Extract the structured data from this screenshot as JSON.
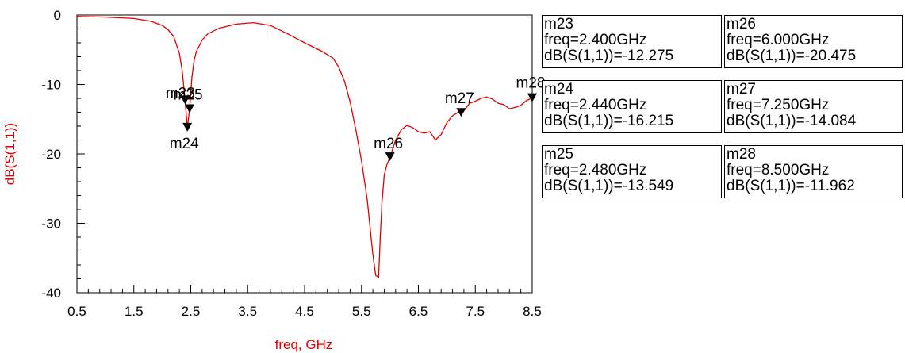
{
  "chart_data": {
    "type": "line",
    "xlabel": "freq, GHz",
    "ylabel": "dB(S(1,1))",
    "xlim": [
      0.5,
      8.5
    ],
    "ylim": [
      -40,
      0
    ],
    "x_ticks": [
      "0.5",
      "1.5",
      "2.5",
      "3.5",
      "4.5",
      "5.5",
      "6.5",
      "7.5",
      "8.5"
    ],
    "y_ticks": [
      "0",
      "-10",
      "-20",
      "-30",
      "-40"
    ],
    "grid": false,
    "series": [
      {
        "color": "#e00000",
        "x": [
          0.5,
          1.0,
          1.5,
          1.8,
          2.0,
          2.1,
          2.2,
          2.3,
          2.35,
          2.4,
          2.44,
          2.48,
          2.52,
          2.56,
          2.6,
          2.7,
          2.8,
          3.0,
          3.3,
          3.6,
          3.9,
          4.2,
          4.5,
          4.8,
          5.0,
          5.1,
          5.2,
          5.3,
          5.4,
          5.5,
          5.6,
          5.65,
          5.7,
          5.75,
          5.8,
          5.83,
          5.86,
          5.9,
          5.95,
          6.0,
          6.1,
          6.2,
          6.3,
          6.4,
          6.5,
          6.6,
          6.7,
          6.8,
          6.9,
          7.0,
          7.1,
          7.2,
          7.25,
          7.3,
          7.4,
          7.5,
          7.6,
          7.7,
          7.8,
          7.9,
          8.0,
          8.1,
          8.2,
          8.3,
          8.4,
          8.5
        ],
        "y": [
          -0.2,
          -0.3,
          -0.5,
          -0.9,
          -1.5,
          -2.1,
          -3.1,
          -5.5,
          -8.0,
          -12.3,
          -16.2,
          -13.5,
          -9.0,
          -6.5,
          -5.2,
          -3.6,
          -2.7,
          -1.9,
          -1.3,
          -1.1,
          -1.5,
          -2.7,
          -4.0,
          -5.2,
          -6.2,
          -7.5,
          -9.5,
          -12.5,
          -16.5,
          -21.0,
          -26.5,
          -30.5,
          -34.5,
          -37.5,
          -37.8,
          -32.0,
          -27.0,
          -23.0,
          -21.5,
          -20.5,
          -18.0,
          -16.5,
          -15.9,
          -16.2,
          -16.8,
          -17.0,
          -16.8,
          -18.0,
          -17.2,
          -15.5,
          -14.5,
          -14.0,
          -14.1,
          -13.8,
          -12.7,
          -12.4,
          -12.0,
          -11.8,
          -12.1,
          -12.7,
          -12.9,
          -13.5,
          -13.3,
          -13.0,
          -12.3,
          -11.96
        ]
      }
    ],
    "markers": [
      {
        "name": "m23",
        "freq": "freq=2.400GHz",
        "value": "dB(S(1,1))=-12.275",
        "x": 2.4,
        "y": -12.275
      },
      {
        "name": "m24",
        "freq": "freq=2.440GHz",
        "value": "dB(S(1,1))=-16.215",
        "x": 2.44,
        "y": -16.215
      },
      {
        "name": "m25",
        "freq": "freq=2.480GHz",
        "value": "dB(S(1,1))=-13.549",
        "x": 2.48,
        "y": -13.549
      },
      {
        "name": "m26",
        "freq": "freq=6.000GHz",
        "value": "dB(S(1,1))=-20.475",
        "x": 6.0,
        "y": -20.475
      },
      {
        "name": "m27",
        "freq": "freq=7.250GHz",
        "value": "dB(S(1,1))=-14.084",
        "x": 7.25,
        "y": -14.084
      },
      {
        "name": "m28",
        "freq": "freq=8.500GHz",
        "value": "dB(S(1,1))=-11.962",
        "x": 8.5,
        "y": -11.962
      }
    ]
  },
  "marker_table": [
    [
      "m23",
      "m26"
    ],
    [
      "m24",
      "m27"
    ],
    [
      "m25",
      "m28"
    ]
  ]
}
